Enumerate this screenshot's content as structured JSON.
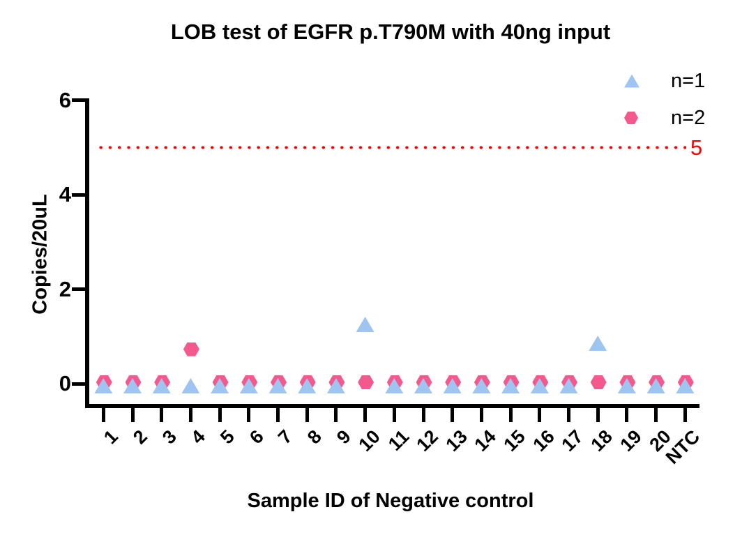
{
  "chart_data": {
    "type": "scatter",
    "title": "LOB test of EGFR p.T790M with 40ng input",
    "xlabel": "Sample ID of Negative control",
    "ylabel": "Copies/20uL",
    "categories": [
      "1",
      "2",
      "3",
      "4",
      "5",
      "6",
      "7",
      "8",
      "9",
      "10",
      "11",
      "12",
      "13",
      "14",
      "15",
      "16",
      "17",
      "18",
      "19",
      "20",
      "NTC"
    ],
    "series": [
      {
        "name": "n=1",
        "marker": "triangle",
        "color": "#9EC4F1",
        "values": [
          0,
          0,
          0,
          0,
          0,
          0,
          0,
          0,
          0,
          1.3,
          0,
          0,
          0,
          0,
          0,
          0,
          0,
          0.9,
          0,
          0,
          0
        ]
      },
      {
        "name": "n=2",
        "marker": "hexagon",
        "color": "#F4598E",
        "values": [
          0,
          0,
          0,
          0.7,
          0,
          0,
          0,
          0,
          0,
          0,
          0,
          0,
          0,
          0,
          0,
          0,
          0,
          0,
          0,
          0,
          0
        ]
      }
    ],
    "ylim": [
      0,
      6
    ],
    "yticks": [
      "0",
      "2",
      "4",
      "6"
    ],
    "reference_line": {
      "y": 5,
      "label": "5",
      "color": "#FF0000",
      "style": "dotted"
    },
    "grid": false,
    "legend_position": "top-right",
    "colors": {
      "axis": "#000000",
      "background": "#FFFFFF",
      "reference": "#FF0000"
    }
  }
}
